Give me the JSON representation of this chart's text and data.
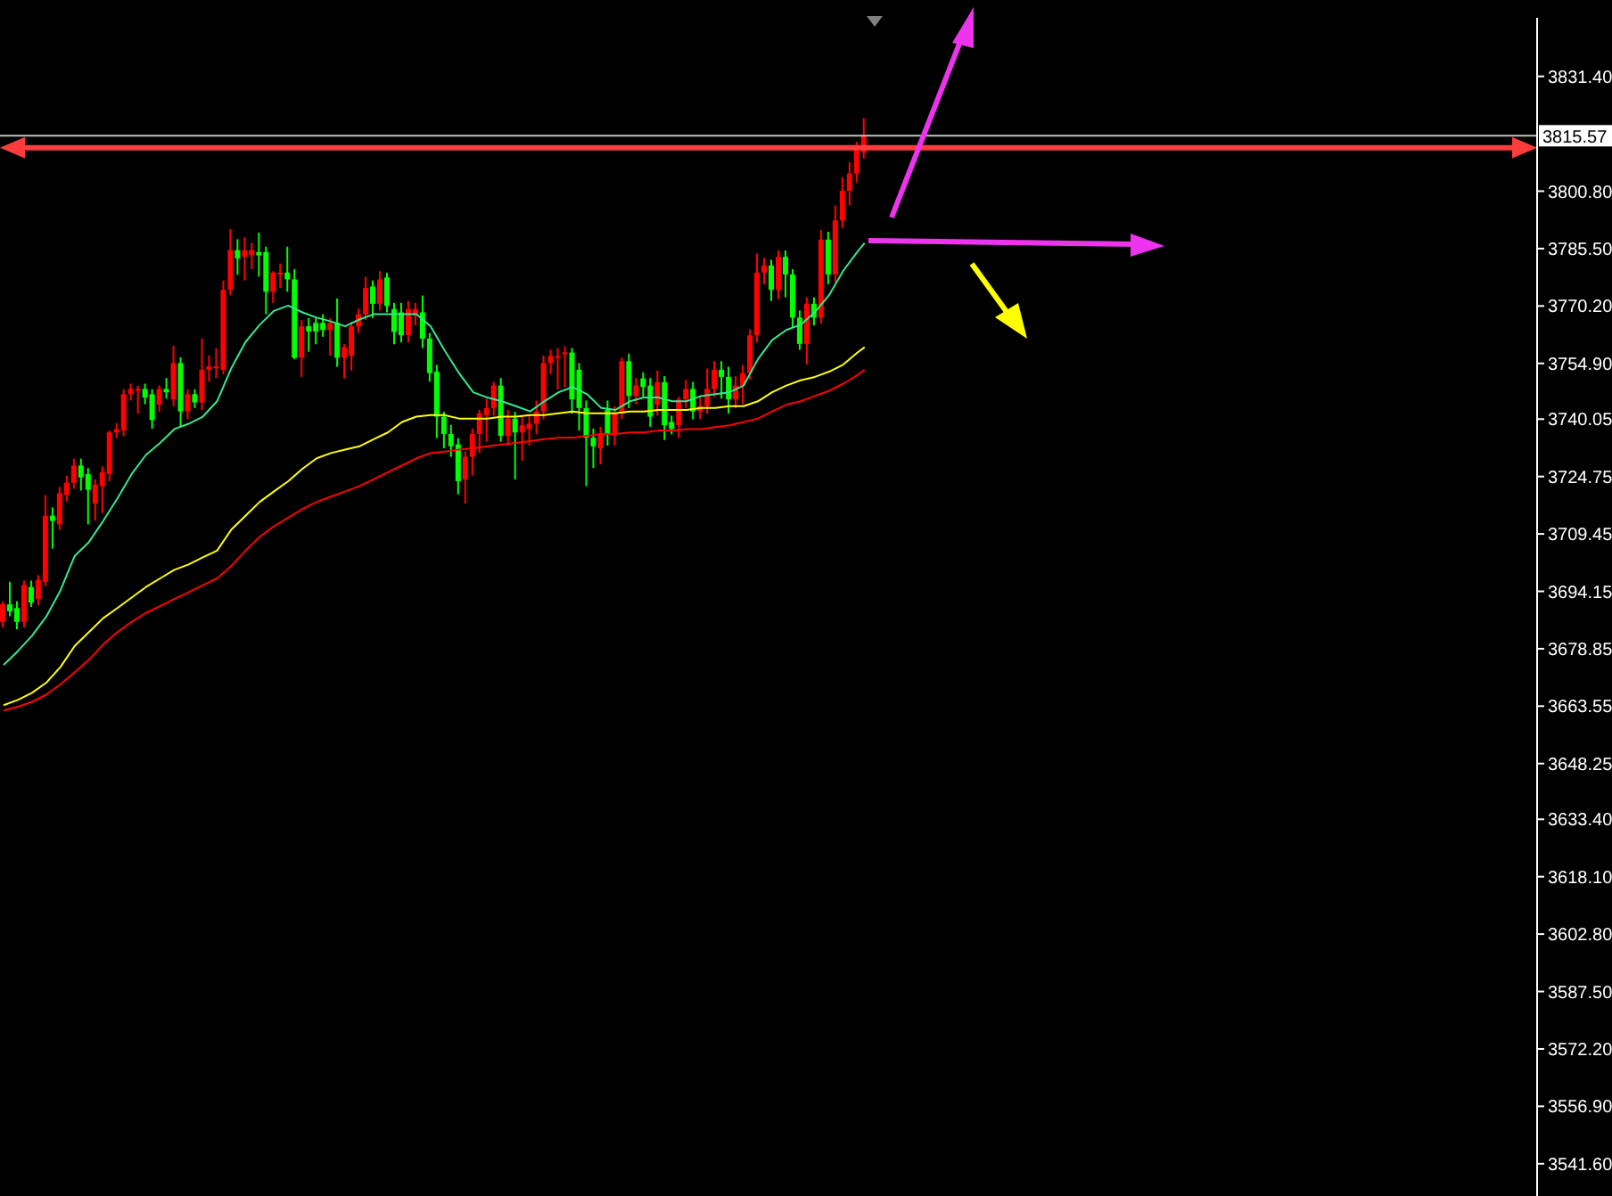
{
  "chart_data": {
    "type": "candlestick",
    "categories": [
      null,
      null,
      null,
      null,
      null,
      null,
      null,
      null,
      null,
      null,
      null,
      null,
      null,
      null,
      null,
      null,
      null,
      null,
      null,
      null,
      null,
      null,
      null,
      null,
      null,
      null,
      null,
      null,
      null,
      null,
      null,
      null,
      null,
      null,
      null,
      null,
      null,
      null,
      null,
      null,
      null,
      null,
      null,
      null,
      null,
      null,
      null,
      null,
      null,
      null,
      null,
      null,
      null,
      null,
      null,
      null,
      null,
      null,
      null,
      null,
      null,
      null,
      null,
      null,
      null,
      null,
      null,
      null,
      null,
      null,
      null,
      null,
      null,
      null,
      null,
      null,
      null,
      null,
      null,
      null,
      null,
      null,
      null,
      null,
      null,
      null,
      null,
      null,
      null,
      null,
      null,
      null,
      null,
      null,
      null,
      null,
      null,
      null,
      null,
      null,
      null,
      null,
      null,
      null,
      null,
      null,
      null,
      null,
      null,
      null,
      null,
      null,
      null,
      null,
      null,
      null,
      null,
      null,
      null,
      null,
      null,
      null,
      null,
      null,
      null,
      null,
      null,
      null,
      null,
      null,
      null,
      null,
      null,
      null,
      null,
      null,
      null,
      null,
      null,
      null,
      null,
      null,
      null,
      null,
      null,
      null,
      null,
      null,
      null,
      null,
      null,
      null,
      null,
      null,
      null,
      null,
      null,
      null,
      null,
      null,
      null,
      null,
      null,
      null,
      null,
      null,
      null,
      null,
      null,
      null,
      null,
      null,
      null,
      null,
      null,
      null,
      null,
      null,
      null,
      null,
      null,
      null,
      null,
      null,
      null,
      null,
      null,
      null,
      null,
      null,
      null,
      null,
      null,
      null,
      null,
      null,
      null,
      null,
      null,
      null,
      null,
      null,
      null,
      null,
      null,
      null,
      null,
      null,
      null,
      null,
      null,
      null,
      null,
      null,
      null,
      null
    ],
    "ohlc": [
      [
        3686.0,
        3691.5,
        3684.5,
        3690.7
      ],
      [
        3690.7,
        3696.7,
        3687.5,
        3688.8
      ],
      [
        3689.7,
        3691.5,
        3684.0,
        3686.0
      ],
      [
        3686.0,
        3697.0,
        3684.5,
        3695.8
      ],
      [
        3695.3,
        3697.0,
        3690.0,
        3691.1
      ],
      [
        3692.1,
        3698.5,
        3690.5,
        3697.2
      ],
      [
        3696.7,
        3719.8,
        3695.5,
        3714.3
      ],
      [
        3714.3,
        3716.5,
        3705.5,
        3712.9
      ],
      [
        3712.0,
        3722.0,
        3710.5,
        3720.3
      ],
      [
        3719.8,
        3725.0,
        3718.0,
        3723.1
      ],
      [
        3723.1,
        3729.5,
        3721.5,
        3727.7
      ],
      [
        3727.7,
        3729.5,
        3721.0,
        3724.5
      ],
      [
        3725.4,
        3727.0,
        3712.0,
        3721.2
      ],
      [
        3717.5,
        3724.0,
        3713.0,
        3722.6
      ],
      [
        3722.2,
        3727.5,
        3715.0,
        3725.9
      ],
      [
        3725.4,
        3737.0,
        3723.5,
        3736.5
      ],
      [
        3736.5,
        3739.0,
        3735.0,
        3737.4
      ],
      [
        3737.0,
        3748.0,
        3735.5,
        3746.7
      ],
      [
        3746.7,
        3749.5,
        3745.0,
        3748.1
      ],
      [
        3747.8,
        3749.0,
        3741.5,
        3748.1
      ],
      [
        3748.1,
        3749.5,
        3744.0,
        3745.8
      ],
      [
        3746.7,
        3748.0,
        3737.5,
        3739.8
      ],
      [
        3743.9,
        3749.0,
        3742.0,
        3748.1
      ],
      [
        3748.1,
        3751.0,
        3745.5,
        3747.2
      ],
      [
        3745.3,
        3759.6,
        3743.5,
        3755.0
      ],
      [
        3755.0,
        3756.5,
        3738.0,
        3742.1
      ],
      [
        3742.1,
        3748.0,
        3740.0,
        3746.7
      ],
      [
        3746.7,
        3748.0,
        3743.0,
        3744.5
      ],
      [
        3744.5,
        3761.5,
        3742.5,
        3753.2
      ],
      [
        3753.2,
        3757.0,
        3750.0,
        3754.1
      ],
      [
        3753.7,
        3759.0,
        3751.0,
        3754.1
      ],
      [
        3753.2,
        3777.0,
        3752.0,
        3774.5
      ],
      [
        3774.5,
        3790.7,
        3773.0,
        3785.1
      ],
      [
        3785.1,
        3788.0,
        3778.5,
        3782.9
      ],
      [
        3783.3,
        3788.5,
        3777.0,
        3785.1
      ],
      [
        3783.7,
        3787.0,
        3780.0,
        3785.1
      ],
      [
        3784.6,
        3789.7,
        3778.0,
        3783.7
      ],
      [
        3784.6,
        3786.0,
        3768.0,
        3774.0
      ],
      [
        3774.0,
        3779.5,
        3771.0,
        3779.1
      ],
      [
        3778.6,
        3781.5,
        3775.0,
        3779.1
      ],
      [
        3779.1,
        3786.0,
        3774.0,
        3777.3
      ],
      [
        3777.3,
        3780.0,
        3756.0,
        3756.4
      ],
      [
        3756.4,
        3766.5,
        3751.3,
        3764.8
      ],
      [
        3764.8,
        3767.0,
        3758.0,
        3763.4
      ],
      [
        3765.7,
        3767.0,
        3760.0,
        3763.4
      ],
      [
        3765.7,
        3768.0,
        3762.0,
        3763.8
      ],
      [
        3763.8,
        3767.0,
        3757.0,
        3765.7
      ],
      [
        3765.7,
        3772.2,
        3754.0,
        3756.4
      ],
      [
        3756.4,
        3760.0,
        3750.9,
        3759.2
      ],
      [
        3756.9,
        3766.0,
        3753.0,
        3764.8
      ],
      [
        3764.8,
        3769.5,
        3763.0,
        3768.0
      ],
      [
        3768.0,
        3778.0,
        3766.5,
        3775.0
      ],
      [
        3775.4,
        3777.0,
        3767.0,
        3770.8
      ],
      [
        3770.8,
        3779.5,
        3769.0,
        3777.3
      ],
      [
        3777.8,
        3779.0,
        3768.5,
        3770.2
      ],
      [
        3769.4,
        3771.0,
        3760.0,
        3763.3
      ],
      [
        3768.5,
        3771.0,
        3760.5,
        3762.4
      ],
      [
        3762.4,
        3771.5,
        3760.5,
        3769.4
      ],
      [
        3767.6,
        3771.0,
        3765.0,
        3769.4
      ],
      [
        3768.5,
        3773.0,
        3759.0,
        3761.5
      ],
      [
        3761.5,
        3763.0,
        3750.0,
        3752.3
      ],
      [
        3752.7,
        3754.5,
        3735.0,
        3740.7
      ],
      [
        3740.7,
        3742.0,
        3732.3,
        3736.1
      ],
      [
        3736.1,
        3738.5,
        3730.0,
        3732.8
      ],
      [
        3733.3,
        3735.0,
        3720.0,
        3723.5
      ],
      [
        3724.0,
        3731.5,
        3717.5,
        3730.0
      ],
      [
        3730.0,
        3737.5,
        3725.0,
        3736.1
      ],
      [
        3736.1,
        3742.5,
        3731.0,
        3741.6
      ],
      [
        3741.1,
        3745.5,
        3734.0,
        3743.0
      ],
      [
        3743.0,
        3750.0,
        3741.0,
        3749.0
      ],
      [
        3749.0,
        3751.0,
        3734.0,
        3735.6
      ],
      [
        3735.6,
        3742.5,
        3733.0,
        3740.2
      ],
      [
        3740.2,
        3742.0,
        3724.0,
        3736.5
      ],
      [
        3736.5,
        3741.0,
        3729.0,
        3738.4
      ],
      [
        3737.4,
        3741.0,
        3733.0,
        3738.8
      ],
      [
        3738.8,
        3745.0,
        3736.0,
        3742.1
      ],
      [
        3742.1,
        3757.0,
        3740.0,
        3755.0
      ],
      [
        3755.0,
        3758.5,
        3752.0,
        3756.9
      ],
      [
        3756.4,
        3759.0,
        3748.0,
        3756.9
      ],
      [
        3757.4,
        3759.5,
        3748.5,
        3757.8
      ],
      [
        3757.8,
        3759.0,
        3741.5,
        3745.3
      ],
      [
        3753.2,
        3755.0,
        3737.0,
        3743.0
      ],
      [
        3743.0,
        3745.0,
        3722.2,
        3735.1
      ],
      [
        3735.1,
        3737.5,
        3727.0,
        3732.8
      ],
      [
        3732.3,
        3738.0,
        3728.0,
        3736.1
      ],
      [
        3742.5,
        3745.0,
        3733.0,
        3736.1
      ],
      [
        3736.1,
        3743.5,
        3733.0,
        3741.6
      ],
      [
        3741.6,
        3756.5,
        3740.0,
        3755.5
      ],
      [
        3755.5,
        3757.5,
        3743.0,
        3746.2
      ],
      [
        3746.2,
        3751.0,
        3744.0,
        3749.0
      ],
      [
        3750.9,
        3752.5,
        3746.0,
        3748.6
      ],
      [
        3749.0,
        3751.0,
        3738.0,
        3740.7
      ],
      [
        3743.9,
        3753.0,
        3741.0,
        3749.9
      ],
      [
        3749.9,
        3751.5,
        3734.5,
        3738.4
      ],
      [
        3739.3,
        3741.0,
        3736.0,
        3737.4
      ],
      [
        3738.4,
        3746.0,
        3735.0,
        3745.3
      ],
      [
        3745.3,
        3750.5,
        3743.0,
        3748.1
      ],
      [
        3748.1,
        3750.0,
        3740.0,
        3742.1
      ],
      [
        3742.1,
        3746.0,
        3740.0,
        3743.5
      ],
      [
        3743.5,
        3753.5,
        3741.5,
        3748.1
      ],
      [
        3748.1,
        3755.5,
        3746.0,
        3753.2
      ],
      [
        3753.2,
        3755.5,
        3745.5,
        3751.3
      ],
      [
        3751.3,
        3754.0,
        3741.5,
        3745.3
      ],
      [
        3745.3,
        3751.5,
        3743.0,
        3749.0
      ],
      [
        3749.0,
        3754.5,
        3744.0,
        3752.3
      ],
      [
        3752.3,
        3764.0,
        3750.5,
        3762.4
      ],
      [
        3762.4,
        3784.2,
        3760.5,
        3779.1
      ],
      [
        3779.1,
        3783.0,
        3776.0,
        3781.0
      ],
      [
        3781.0,
        3782.5,
        3771.5,
        3774.5
      ],
      [
        3774.5,
        3785.0,
        3772.0,
        3783.3
      ],
      [
        3783.3,
        3785.0,
        3772.5,
        3778.6
      ],
      [
        3778.6,
        3780.0,
        3764.5,
        3767.1
      ],
      [
        3767.1,
        3769.0,
        3758.5,
        3760.1
      ],
      [
        3760.1,
        3772.5,
        3754.6,
        3770.8
      ],
      [
        3770.8,
        3772.5,
        3765.0,
        3767.1
      ],
      [
        3767.1,
        3790.5,
        3765.5,
        3787.9
      ],
      [
        3787.9,
        3790.0,
        3776.0,
        3778.6
      ],
      [
        3778.6,
        3797.0,
        3776.5,
        3793.0
      ],
      [
        3793.0,
        3804.5,
        3791.0,
        3800.9
      ],
      [
        3800.9,
        3808.5,
        3797.0,
        3805.5
      ],
      [
        3805.5,
        3814.0,
        3803.0,
        3812.4
      ],
      [
        3811.1,
        3820.3,
        3809.5,
        3815.57
      ],
      null,
      null,
      null,
      null,
      null,
      null,
      null,
      null,
      null,
      null,
      null,
      null,
      null,
      null,
      null,
      null,
      null,
      null,
      null,
      null,
      null,
      null,
      null,
      null,
      null,
      null,
      null,
      null,
      null,
      null,
      null,
      null,
      null,
      null,
      null,
      null,
      null,
      null,
      null,
      null,
      null,
      null,
      null,
      null,
      null,
      null,
      null,
      null,
      null,
      null,
      null,
      null,
      null,
      null,
      null,
      null,
      null,
      null,
      null,
      null,
      null,
      null,
      null,
      null,
      null,
      null,
      null,
      null,
      null,
      null,
      null,
      null,
      null,
      null,
      null,
      null,
      null,
      null,
      null,
      null,
      null,
      null,
      null,
      null,
      null,
      null,
      null,
      null,
      null,
      null,
      null,
      null,
      null,
      null
    ],
    "colors": [
      "#ff0000",
      "#00ff00",
      "#00ff00",
      "#ff0000",
      "#00ff00",
      "#ff0000",
      "#ff0000",
      "#00ff00",
      "#ff0000",
      "#ff0000",
      "#ff0000",
      "#00ff00",
      "#00ff00",
      "#ff0000",
      "#ff0000",
      "#ff0000",
      "#ff0000",
      "#ff0000",
      "#ff0000",
      "#ff0000",
      "#00ff00",
      "#00ff00",
      "#ff0000",
      "#00ff00",
      "#ff0000",
      "#00ff00",
      "#ff0000",
      "#00ff00",
      "#ff0000",
      "#ff0000",
      "#ff0000",
      "#ff0000",
      "#ff0000",
      "#00ff00",
      "#ff0000",
      "#ff0000",
      "#00ff00",
      "#00ff00",
      "#ff0000",
      "#ff0000",
      "#00ff00",
      "#00ff00",
      "#ff0000",
      "#00ff00",
      "#00ff00",
      "#00ff00",
      "#ff0000",
      "#00ff00",
      "#ff0000",
      "#ff0000",
      "#ff0000",
      "#ff0000",
      "#00ff00",
      "#ff0000",
      "#00ff00",
      "#00ff00",
      "#00ff00",
      "#ff0000",
      "#ff0000",
      "#00ff00",
      "#00ff00",
      "#00ff00",
      "#00ff00",
      "#00ff00",
      "#00ff00",
      "#ff0000",
      "#ff0000",
      "#ff0000",
      "#ff0000",
      "#ff0000",
      "#00ff00",
      "#ff0000",
      "#00ff00",
      "#ff0000",
      "#ff0000",
      "#ff0000",
      "#ff0000",
      "#ff0000",
      "#ff0000",
      "#ff0000",
      "#00ff00",
      "#00ff00",
      "#00ff00",
      "#00ff00",
      "#ff0000",
      "#00ff00",
      "#ff0000",
      "#ff0000",
      "#00ff00",
      "#ff0000",
      "#00ff00",
      "#00ff00",
      "#ff0000",
      "#00ff00",
      "#00ff00",
      "#ff0000",
      "#ff0000",
      "#00ff00",
      "#ff0000",
      "#ff0000",
      "#ff0000",
      "#00ff00",
      "#00ff00",
      "#ff0000",
      "#ff0000",
      "#ff0000",
      "#ff0000",
      "#ff0000",
      "#00ff00",
      "#ff0000",
      "#00ff00",
      "#00ff00",
      "#00ff00",
      "#ff0000",
      "#00ff00",
      "#ff0000",
      "#00ff00",
      "#ff0000",
      "#ff0000",
      "#ff0000",
      "#ff0000",
      "#ff0000",
      null,
      null,
      null,
      null,
      null,
      null,
      null,
      null,
      null,
      null,
      null,
      null,
      null,
      null,
      null,
      null,
      null,
      null,
      null,
      null,
      null,
      null,
      null,
      null,
      null,
      null,
      null,
      null,
      null,
      null,
      null,
      null,
      null,
      null,
      null,
      null,
      null,
      null,
      null,
      null,
      null,
      null,
      null,
      null,
      null,
      null,
      null,
      null,
      null,
      null,
      null,
      null,
      null,
      null,
      null,
      null,
      null,
      null,
      null,
      null,
      null,
      null,
      null,
      null,
      null,
      null,
      null,
      null,
      null,
      null,
      null,
      null,
      null,
      null,
      null,
      null,
      null,
      null,
      null,
      null,
      null,
      null,
      null,
      null,
      null,
      null,
      null,
      null,
      null,
      null,
      null,
      null,
      null,
      null
    ],
    "series": [
      {
        "type": "line",
        "color": "#33e890",
        "values": [
          3674.5,
          null,
          3678.2,
          null,
          3682.3,
          null,
          3687.4,
          null,
          3694.4,
          null,
          3703.6,
          null,
          3707.3,
          null,
          3712.9,
          null,
          3718.9,
          null,
          3725.4,
          null,
          3730.5,
          null,
          3733.7,
          null,
          3737.4,
          null,
          3738.8,
          null,
          3740.7,
          null,
          3744.8,
          null,
          3753.6,
          null,
          3760.6,
          null,
          3765.2,
          null,
          3768.9,
          null,
          3770.3,
          null,
          3768.5,
          null,
          3767.1,
          null,
          3766.1,
          null,
          3764.8,
          null,
          3766.6,
          null,
          3768.0,
          null,
          3768.0,
          null,
          3768.0,
          null,
          3768.0,
          null,
          3764.8,
          null,
          3758.3,
          null,
          3752.3,
          null,
          3747.2,
          null,
          3745.8,
          null,
          3744.8,
          null,
          3743.5,
          null,
          3742.1,
          null,
          3744.8,
          null,
          3747.2,
          null,
          3748.6,
          null,
          3746.7,
          null,
          3743.0,
          null,
          3742.5,
          null,
          3744.8,
          null,
          3745.8,
          null,
          3745.8,
          null,
          3744.8,
          null,
          3744.8,
          null,
          3746.2,
          null,
          3746.7,
          null,
          3747.2,
          null,
          3749.0,
          null,
          3756.0,
          null,
          3761.1,
          null,
          3763.8,
          null,
          3765.2,
          null,
          3768.5,
          null,
          3773.1,
          null,
          3779.6,
          null,
          3784.7,
          3787.0,
          null,
          null,
          null,
          null,
          null,
          null,
          null,
          null,
          null,
          null,
          null,
          null,
          null,
          null,
          null,
          null,
          null,
          null,
          null,
          null,
          null,
          null,
          null,
          null,
          null,
          null,
          null,
          null,
          null,
          null,
          null,
          null,
          null,
          null,
          null,
          null,
          null,
          null,
          null,
          null,
          null,
          null,
          null,
          null,
          null,
          null,
          null,
          null,
          null,
          null,
          null,
          null,
          null,
          null,
          null,
          null,
          null,
          null,
          null,
          null,
          null,
          null,
          null,
          null,
          null,
          null,
          null,
          null,
          null,
          null,
          null,
          null,
          null,
          null,
          null,
          null,
          null,
          null,
          null,
          null,
          null,
          null,
          null,
          null,
          null,
          null,
          null,
          null,
          null,
          null,
          null,
          null,
          null,
          null
        ]
      },
      {
        "type": "line",
        "color": "#ffff00",
        "values": [
          3663.8,
          null,
          3665.2,
          null,
          3667.1,
          null,
          3669.8,
          null,
          3674.0,
          null,
          3679.6,
          null,
          3683.3,
          null,
          3687.0,
          null,
          3689.7,
          null,
          3692.5,
          null,
          3695.3,
          null,
          3697.6,
          null,
          3699.9,
          null,
          3701.3,
          null,
          3703.2,
          null,
          3705.0,
          null,
          3710.6,
          null,
          3714.3,
          null,
          3718.0,
          null,
          3720.8,
          null,
          3723.5,
          null,
          3726.8,
          null,
          3729.6,
          null,
          3731.0,
          null,
          3731.9,
          null,
          3732.8,
          null,
          3734.7,
          null,
          3736.5,
          null,
          3739.3,
          null,
          3740.7,
          null,
          3741.1,
          null,
          3741.1,
          null,
          3740.2,
          null,
          3740.2,
          null,
          3740.2,
          null,
          3740.7,
          null,
          3740.7,
          null,
          3741.1,
          null,
          3741.1,
          null,
          3741.6,
          null,
          3742.1,
          null,
          3741.6,
          null,
          3741.6,
          null,
          3741.6,
          null,
          3742.1,
          null,
          3742.1,
          null,
          3742.5,
          null,
          3742.5,
          null,
          3742.5,
          null,
          3743.0,
          null,
          3743.0,
          null,
          3743.5,
          null,
          3743.5,
          null,
          3744.8,
          null,
          3747.2,
          null,
          3749.0,
          null,
          3750.4,
          null,
          3751.3,
          null,
          3752.7,
          null,
          3754.6,
          null,
          3757.8,
          3759.2,
          null,
          null,
          null,
          null,
          null,
          null,
          null,
          null,
          null,
          null,
          null,
          null,
          null,
          null,
          null,
          null,
          null,
          null,
          null,
          null,
          null,
          null,
          null,
          null,
          null,
          null,
          null,
          null,
          null,
          null,
          null,
          null,
          null,
          null,
          null,
          null,
          null,
          null,
          null,
          null,
          null,
          null,
          null,
          null,
          null,
          null,
          null,
          null,
          null,
          null,
          null,
          null,
          null,
          null,
          null,
          null,
          null,
          null,
          null,
          null,
          null,
          null,
          null,
          null,
          null,
          null,
          null,
          null,
          null,
          null,
          null,
          null,
          null,
          null,
          null,
          null,
          null,
          null,
          null,
          null,
          null,
          null,
          null,
          null,
          null,
          null,
          null,
          null,
          null,
          null,
          null,
          null,
          null,
          null
        ]
      },
      {
        "type": "line",
        "color": "#ff0000",
        "values": [
          3662.4,
          null,
          3663.4,
          null,
          3664.7,
          null,
          3666.6,
          null,
          3669.4,
          null,
          3672.6,
          null,
          3675.9,
          null,
          3680.0,
          null,
          3683.3,
          null,
          3686.0,
          null,
          3688.4,
          null,
          3690.2,
          null,
          3692.1,
          null,
          3693.9,
          null,
          3695.8,
          null,
          3697.6,
          null,
          3700.9,
          null,
          3705.0,
          null,
          3708.7,
          null,
          3711.5,
          null,
          3713.8,
          null,
          3716.1,
          null,
          3718.0,
          null,
          3719.4,
          null,
          3720.8,
          null,
          3722.2,
          null,
          3724.0,
          null,
          3725.9,
          null,
          3727.7,
          null,
          3729.6,
          null,
          3731.0,
          null,
          3731.4,
          null,
          3731.9,
          null,
          3732.3,
          null,
          3732.8,
          null,
          3733.3,
          null,
          3733.7,
          null,
          3734.2,
          null,
          3734.7,
          null,
          3735.1,
          null,
          3735.1,
          null,
          3735.6,
          null,
          3736.1,
          null,
          3736.1,
          null,
          3736.5,
          null,
          3736.5,
          null,
          3737.0,
          null,
          3737.0,
          null,
          3737.4,
          null,
          3737.4,
          null,
          3737.9,
          null,
          3738.4,
          null,
          3739.3,
          null,
          3740.2,
          null,
          3742.1,
          null,
          3743.9,
          null,
          3744.8,
          null,
          3746.2,
          null,
          3747.6,
          null,
          3749.5,
          null,
          3751.8,
          3753.2,
          null,
          null,
          null,
          null,
          null,
          null,
          null,
          null,
          null,
          null,
          null,
          null,
          null,
          null,
          null,
          null,
          null,
          null,
          null,
          null,
          null,
          null,
          null,
          null,
          null,
          null,
          null,
          null,
          null,
          null,
          null,
          null,
          null,
          null,
          null,
          null,
          null,
          null,
          null,
          null,
          null,
          null,
          null,
          null,
          null,
          null,
          null,
          null,
          null,
          null,
          null,
          null,
          null,
          null,
          null,
          null,
          null,
          null,
          null,
          null,
          null,
          null,
          null,
          null,
          null,
          null,
          null,
          null,
          null,
          null,
          null,
          null,
          null,
          null,
          null,
          null,
          null,
          null,
          null,
          null,
          null,
          null,
          null,
          null,
          null,
          null,
          null,
          null,
          null,
          null,
          null,
          null,
          null,
          null
        ]
      }
    ],
    "ylim": [
      3533,
      3847
    ],
    "yticks": [
      {
        "value": 3831.4,
        "label": "3831.40"
      },
      {
        "value": 3800.8,
        "label": "3800.80"
      },
      {
        "value": 3785.5,
        "label": "3785.50"
      },
      {
        "value": 3770.2,
        "label": "3770.20"
      },
      {
        "value": 3754.9,
        "label": "3754.90"
      },
      {
        "value": 3740.05,
        "label": "3740.05"
      },
      {
        "value": 3724.75,
        "label": "3724.75"
      },
      {
        "value": 3709.45,
        "label": "3709.45"
      },
      {
        "value": 3694.15,
        "label": "3694.15"
      },
      {
        "value": 3678.85,
        "label": "3678.85"
      },
      {
        "value": 3663.55,
        "label": "3663.55"
      },
      {
        "value": 3648.25,
        "label": "3648.25"
      },
      {
        "value": 3633.4,
        "label": "3633.40"
      },
      {
        "value": 3618.1,
        "label": "3618.10"
      },
      {
        "value": 3602.8,
        "label": "3602.80"
      },
      {
        "value": 3587.5,
        "label": "3587.50"
      },
      {
        "value": 3572.2,
        "label": "3572.20"
      },
      {
        "value": 3556.9,
        "label": "3556.90"
      },
      {
        "value": 3541.6,
        "label": "3541.60"
      }
    ],
    "ref_lines": [
      {
        "axis": "y",
        "value": 3815.57,
        "label": "3815.57",
        "color": "#c0c0c0",
        "line_style": "solid"
      },
      {
        "axis": "y",
        "value": 3812.4,
        "color": "#ff3c3c",
        "line_style": "solid"
      }
    ]
  }
}
